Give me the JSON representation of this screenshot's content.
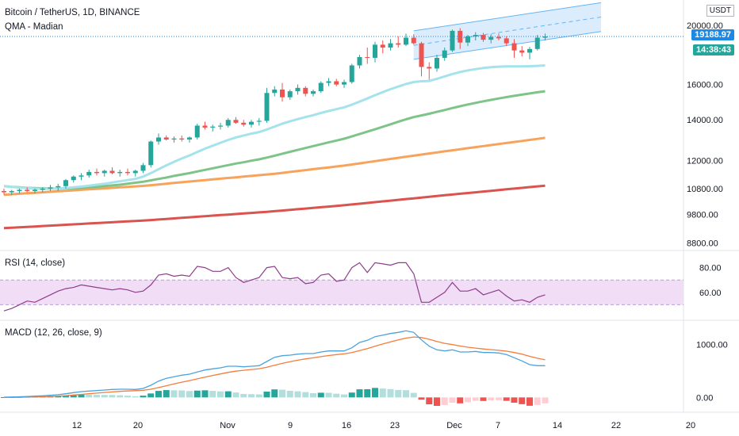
{
  "header": {
    "title": "Bitcoin / TetherUS, 1D, BINANCE",
    "indicator": "QMA - Madian",
    "unit": "USDT"
  },
  "price_axis": {
    "ticks": [
      "20000.00",
      "16000.00",
      "14000.00",
      "12000.00",
      "10800.00",
      "9800.00",
      "8800.00"
    ],
    "last_price": "19188.97",
    "countdown": "14:38:43"
  },
  "rsi": {
    "label": "RSI (14, close)",
    "ticks": [
      "80.00",
      "60.00"
    ]
  },
  "macd": {
    "label": "MACD (12, 26, close, 9)",
    "ticks": [
      "1000.00",
      "0.00"
    ]
  },
  "time_axis": {
    "ticks": [
      "12",
      "20",
      "Nov",
      "9",
      "16",
      "23",
      "Dec",
      "7",
      "14",
      "22",
      "20"
    ]
  },
  "colors": {
    "up": "#26a69a",
    "down": "#ef5350",
    "ma_fast": "#a5e3ec",
    "ma_mid": "#7ec489",
    "ma_slow": "#f7a35c",
    "ma_long": "#d9534f",
    "channel_fill": "#cfe6fb",
    "channel_line": "#64b5f6",
    "rsi_line": "#8e3e8a",
    "rsi_band": "#f1ddf6",
    "macd_line": "#4aa3df",
    "signal_line": "#f57c3a",
    "hist_up_strong": "#26a69a",
    "hist_up_weak": "#b2dfdb",
    "hist_down_strong": "#ef5350",
    "hist_down_weak": "#ffcdd2",
    "last_price_tag": "#1e88e5",
    "countdown_tag": "#26a69a"
  },
  "chart_data": {
    "type": "candlestick",
    "x_dates": "daily, approx. Oct 5 – Dec 14",
    "candles": [
      [
        10700,
        10800,
        10550,
        10650
      ],
      [
        10650,
        10750,
        10550,
        10700
      ],
      [
        10700,
        10800,
        10600,
        10750
      ],
      [
        10750,
        10850,
        10650,
        10700
      ],
      [
        10700,
        10800,
        10600,
        10750
      ],
      [
        10750,
        10850,
        10650,
        10800
      ],
      [
        10800,
        10950,
        10700,
        10850
      ],
      [
        10850,
        11000,
        10700,
        10900
      ],
      [
        10900,
        11200,
        10800,
        11150
      ],
      [
        11150,
        11350,
        11050,
        11300
      ],
      [
        11300,
        11450,
        11150,
        11350
      ],
      [
        11350,
        11600,
        11250,
        11500
      ],
      [
        11500,
        11650,
        11350,
        11450
      ],
      [
        11450,
        11600,
        11300,
        11550
      ],
      [
        11550,
        11700,
        11400,
        11450
      ],
      [
        11450,
        11600,
        11300,
        11500
      ],
      [
        11500,
        11650,
        11350,
        11450
      ],
      [
        11450,
        11600,
        11300,
        11550
      ],
      [
        11550,
        11900,
        11450,
        11800
      ],
      [
        11800,
        12950,
        11700,
        12900
      ],
      [
        12900,
        13300,
        12750,
        13100
      ],
      [
        13100,
        13200,
        12950,
        13000
      ],
      [
        13000,
        13150,
        12850,
        13050
      ],
      [
        13050,
        13200,
        12900,
        13000
      ],
      [
        13000,
        13150,
        12850,
        13100
      ],
      [
        13100,
        13800,
        13000,
        13700
      ],
      [
        13700,
        13900,
        13500,
        13600
      ],
      [
        13600,
        13750,
        13400,
        13650
      ],
      [
        13650,
        13850,
        13500,
        13700
      ],
      [
        13700,
        14100,
        13600,
        14000
      ],
      [
        14000,
        14150,
        13800,
        13850
      ],
      [
        13850,
        14000,
        13650,
        13750
      ],
      [
        13750,
        14000,
        13600,
        13900
      ],
      [
        13900,
        14100,
        13700,
        13950
      ],
      [
        13950,
        15800,
        13850,
        15500
      ],
      [
        15500,
        15900,
        15300,
        15700
      ],
      [
        15700,
        16100,
        15000,
        15250
      ],
      [
        15250,
        15700,
        15100,
        15600
      ],
      [
        15600,
        16000,
        15400,
        15800
      ],
      [
        15800,
        15900,
        15300,
        15450
      ],
      [
        15450,
        15700,
        15300,
        15600
      ],
      [
        15600,
        16200,
        15500,
        16100
      ],
      [
        16100,
        16400,
        15900,
        16200
      ],
      [
        16200,
        16350,
        15900,
        16000
      ],
      [
        16000,
        16300,
        15800,
        16150
      ],
      [
        16150,
        17300,
        16050,
        17200
      ],
      [
        17200,
        17900,
        17000,
        17750
      ],
      [
        17750,
        18400,
        17300,
        17700
      ],
      [
        17700,
        18800,
        17400,
        18600
      ],
      [
        18600,
        18900,
        18000,
        18400
      ],
      [
        18400,
        19000,
        18200,
        18700
      ],
      [
        18700,
        19200,
        18400,
        18600
      ],
      [
        18600,
        19400,
        18500,
        19100
      ],
      [
        19100,
        19350,
        18600,
        18700
      ],
      [
        18700,
        18800,
        16500,
        17100
      ],
      [
        17100,
        17400,
        16300,
        17000
      ],
      [
        17000,
        17900,
        16800,
        17700
      ],
      [
        17700,
        18400,
        17500,
        18200
      ],
      [
        18200,
        19700,
        18100,
        19600
      ],
      [
        19600,
        19800,
        18300,
        18750
      ],
      [
        18750,
        19300,
        18500,
        19200
      ],
      [
        19200,
        19500,
        18900,
        19300
      ],
      [
        19300,
        19450,
        18800,
        18950
      ],
      [
        18950,
        19350,
        18700,
        19150
      ],
      [
        19150,
        19400,
        18900,
        19050
      ],
      [
        19050,
        19200,
        18500,
        18700
      ],
      [
        18700,
        19000,
        17700,
        18200
      ],
      [
        18200,
        18500,
        17800,
        18050
      ],
      [
        18050,
        18450,
        17600,
        18300
      ],
      [
        18300,
        19300,
        18200,
        19100
      ],
      [
        19100,
        19400,
        18900,
        19189
      ]
    ],
    "rsi_range": [
      40,
      90
    ],
    "rsi_values": [
      45,
      47,
      50,
      53,
      52,
      55,
      58,
      61,
      63,
      64,
      66,
      65,
      64,
      63,
      62,
      63,
      62,
      60,
      61,
      66,
      74,
      75,
      73,
      74,
      73,
      81,
      80,
      77,
      77,
      80,
      72,
      68,
      70,
      72,
      80,
      81,
      72,
      71,
      72,
      67,
      68,
      74,
      75,
      69,
      70,
      80,
      84,
      76,
      84,
      83,
      82,
      84,
      84,
      75,
      52,
      52,
      56,
      60,
      68,
      61,
      61,
      63,
      58,
      60,
      62,
      57,
      53,
      54,
      52,
      56,
      58
    ],
    "macd_range": [
      -250,
      1400
    ],
    "macd_values": [
      5,
      8,
      12,
      18,
      24,
      30,
      40,
      52,
      70,
      90,
      110,
      120,
      130,
      140,
      150,
      155,
      155,
      150,
      170,
      230,
      310,
      360,
      390,
      420,
      440,
      480,
      520,
      540,
      560,
      590,
      590,
      580,
      590,
      600,
      680,
      760,
      790,
      800,
      820,
      830,
      830,
      860,
      880,
      880,
      880,
      940,
      1040,
      1080,
      1150,
      1180,
      1210,
      1230,
      1260,
      1230,
      1090,
      970,
      900,
      880,
      900,
      860,
      860,
      870,
      850,
      850,
      840,
      810,
      750,
      690,
      620,
      600,
      600
    ],
    "signal_values": [
      0,
      2,
      4,
      7,
      10,
      14,
      19,
      25,
      34,
      45,
      58,
      70,
      82,
      93,
      104,
      114,
      122,
      128,
      136,
      155,
      186,
      221,
      255,
      288,
      318,
      351,
      385,
      416,
      445,
      474,
      497,
      514,
      529,
      543,
      570,
      608,
      644,
      675,
      704,
      729,
      749,
      771,
      793,
      810,
      824,
      848,
      886,
      925,
      970,
      1012,
      1052,
      1088,
      1123,
      1144,
      1133,
      1100,
      1060,
      1024,
      1000,
      972,
      950,
      934,
      917,
      904,
      891,
      875,
      850,
      818,
      778,
      742,
      712
    ],
    "ma_fast_values": [
      10900,
      10870,
      10840,
      10820,
      10800,
      10790,
      10790,
      10800,
      10820,
      10850,
      10880,
      10920,
      10960,
      11000,
      11050,
      11100,
      11150,
      11200,
      11300,
      11450,
      11620,
      11790,
      11950,
      12100,
      12240,
      12400,
      12560,
      12700,
      12840,
      12980,
      13100,
      13200,
      13290,
      13370,
      13500,
      13650,
      13800,
      13920,
      14040,
      14150,
      14250,
      14370,
      14480,
      14580,
      14680,
      14830,
      15000,
      15180,
      15370,
      15550,
      15720,
      15880,
      16030,
      16150,
      16200,
      16220,
      16350,
      16500,
      16650,
      16780,
      16880,
      16960,
      17030,
      17080,
      17120,
      17140,
      17140,
      17140,
      17150,
      17170,
      17200
    ],
    "ma_mid_values": [
      10900,
      10870,
      10850,
      10830,
      10820,
      10810,
      10800,
      10800,
      10810,
      10820,
      10830,
      10850,
      10870,
      10900,
      10930,
      10960,
      11000,
      11040,
      11080,
      11140,
      11200,
      11260,
      11330,
      11390,
      11450,
      11520,
      11590,
      11660,
      11730,
      11800,
      11870,
      11930,
      12000,
      12060,
      12140,
      12230,
      12320,
      12410,
      12500,
      12590,
      12680,
      12770,
      12860,
      12950,
      13040,
      13150,
      13270,
      13390,
      13510,
      13640,
      13770,
      13900,
      14030,
      14150,
      14240,
      14330,
      14430,
      14530,
      14640,
      14740,
      14840,
      14930,
      15020,
      15100,
      15180,
      15260,
      15330,
      15400,
      15470,
      15540,
      15600
    ],
    "ma_slow_values": [
      10550,
      10570,
      10590,
      10610,
      10630,
      10650,
      10670,
      10690,
      10710,
      10730,
      10750,
      10770,
      10790,
      10810,
      10830,
      10850,
      10870,
      10890,
      10910,
      10940,
      10970,
      11000,
      11030,
      11060,
      11090,
      11120,
      11150,
      11180,
      11210,
      11240,
      11270,
      11300,
      11330,
      11360,
      11390,
      11420,
      11460,
      11500,
      11540,
      11580,
      11620,
      11660,
      11700,
      11740,
      11780,
      11830,
      11880,
      11930,
      11980,
      12030,
      12080,
      12130,
      12180,
      12230,
      12280,
      12330,
      12380,
      12430,
      12480,
      12530,
      12580,
      12630,
      12680,
      12730,
      12780,
      12830,
      12880,
      12930,
      12980,
      13030,
      13080
    ],
    "ma_long_values": [
      9300,
      9315,
      9330,
      9345,
      9360,
      9375,
      9390,
      9405,
      9420,
      9435,
      9450,
      9465,
      9480,
      9495,
      9510,
      9525,
      9540,
      9555,
      9570,
      9590,
      9610,
      9630,
      9650,
      9670,
      9690,
      9710,
      9730,
      9750,
      9770,
      9790,
      9810,
      9830,
      9850,
      9870,
      9890,
      9915,
      9940,
      9965,
      9990,
      10015,
      10040,
      10065,
      10090,
      10115,
      10140,
      10170,
      10200,
      10230,
      10260,
      10290,
      10320,
      10350,
      10380,
      10410,
      10440,
      10470,
      10500,
      10530,
      10560,
      10590,
      10620,
      10650,
      10680,
      10710,
      10740,
      10770,
      10800,
      10830,
      10860,
      10890,
      10920
    ]
  }
}
